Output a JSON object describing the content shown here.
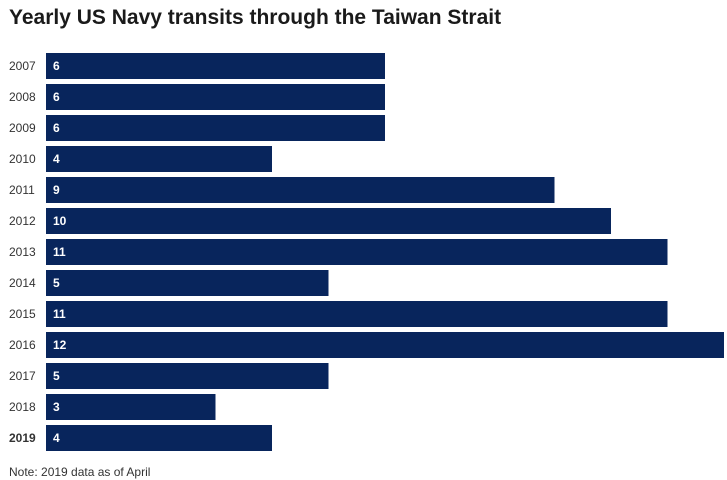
{
  "colors": {
    "bar": "#08255c",
    "bar_label": "#ffffff",
    "tick_label": "#333333",
    "title": "#1a1a1a"
  },
  "note": "Note: 2019 data as of April",
  "chart_data": {
    "type": "bar",
    "orientation": "horizontal",
    "title": "Yearly US Navy transits through the Taiwan Strait",
    "xlabel": "",
    "ylabel": "",
    "categories": [
      "2007",
      "2008",
      "2009",
      "2010",
      "2011",
      "2012",
      "2013",
      "2014",
      "2015",
      "2016",
      "2017",
      "2018",
      "2019"
    ],
    "values": [
      6,
      6,
      6,
      4,
      9,
      10,
      11,
      5,
      11,
      12,
      5,
      3,
      4
    ],
    "bold_categories": [
      "2019"
    ],
    "xlim": [
      0,
      12
    ],
    "grid": false,
    "legend": "none",
    "data_labels": "inside-left"
  }
}
